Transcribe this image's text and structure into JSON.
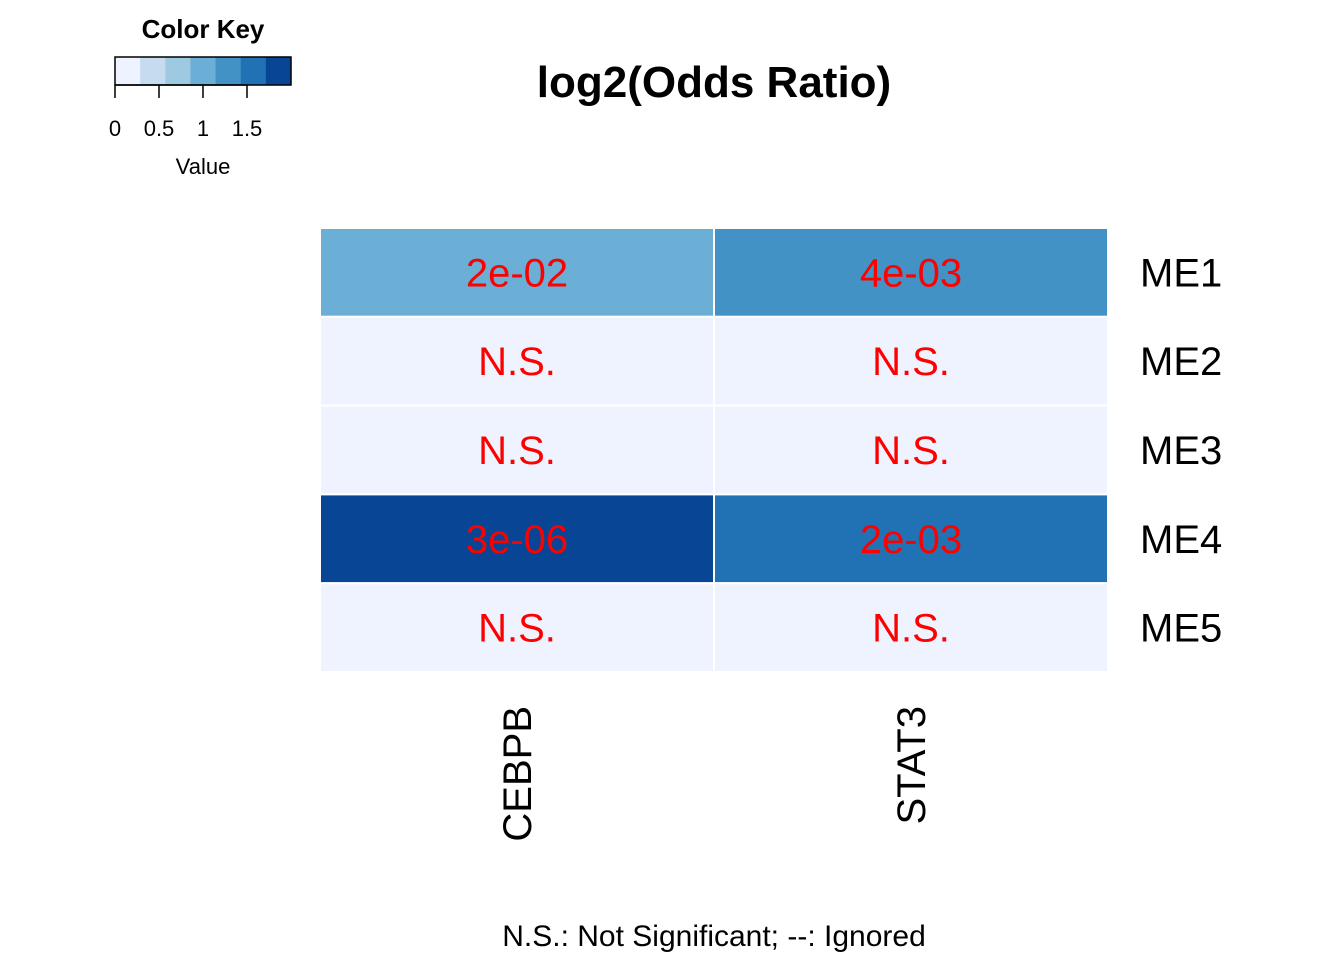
{
  "chart_data": {
    "type": "heatmap",
    "title": "log2(Odds Ratio)",
    "rows": [
      "ME1",
      "ME2",
      "ME3",
      "ME4",
      "ME5"
    ],
    "columns": [
      "CEBPB",
      "STAT3"
    ],
    "values": [
      [
        0.9,
        1.3
      ],
      [
        0.0,
        0.0
      ],
      [
        0.0,
        0.0
      ],
      [
        2.0,
        1.55
      ],
      [
        0.0,
        0.0
      ]
    ],
    "cell_labels": [
      [
        "2e-02",
        "4e-03"
      ],
      [
        "N.S.",
        "N.S."
      ],
      [
        "N.S.",
        "N.S."
      ],
      [
        "3e-06",
        "2e-03"
      ],
      [
        "N.S.",
        "N.S."
      ]
    ],
    "color_key": {
      "title": "Color Key",
      "xlabel": "Value",
      "range": [
        0,
        2
      ],
      "ticks": [
        0,
        0.5,
        1,
        1.5
      ],
      "tick_labels": [
        "0",
        "0.5",
        "1",
        "1.5"
      ],
      "colors": [
        "#EFF3FF",
        "#C6DBEF",
        "#9ECAE1",
        "#6BAED6",
        "#4292C6",
        "#2171B5",
        "#084594"
      ]
    },
    "cell_label_color": "#FF0000",
    "footnote": "N.S.: Not Significant; --: Ignored"
  }
}
